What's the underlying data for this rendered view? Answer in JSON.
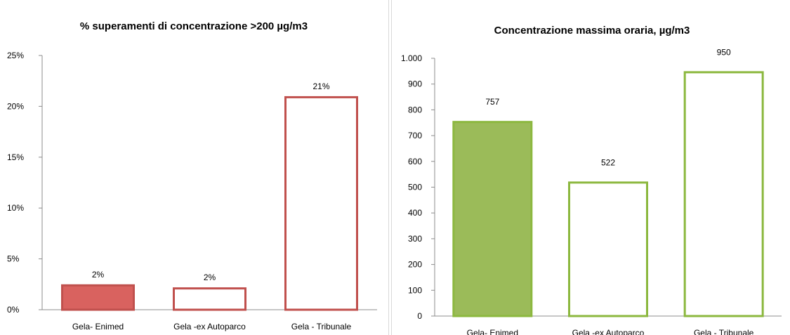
{
  "chart_data": [
    {
      "type": "bar",
      "title": "% superamenti di concentrazione >200 µg/m3",
      "xlabel": "",
      "ylabel": "",
      "categories": [
        "Gela- Enimed",
        "Gela -ex Autoparco",
        "Gela - Tribunale"
      ],
      "values": [
        2.5,
        2.2,
        21
      ],
      "data_labels": [
        "2%",
        "2%",
        "21%"
      ],
      "ylim": [
        0,
        25
      ],
      "yticks": [
        0,
        5,
        10,
        15,
        20,
        25
      ],
      "ytick_labels": [
        "0%",
        "5%",
        "10%",
        "15%",
        "20%",
        "25%"
      ],
      "grid": false,
      "legend": "none",
      "colors": {
        "accent": "#c0504d",
        "fill_first": "#d9625f",
        "fill_other": "#ffffff"
      }
    },
    {
      "type": "bar",
      "title": "Concentrazione massima oraria, µg/m3",
      "xlabel": "",
      "ylabel": "",
      "categories": [
        "Gela- Enimed",
        "Gela -ex Autoparco",
        "Gela - Tribunale"
      ],
      "values": [
        757,
        522,
        950
      ],
      "data_labels": [
        "757",
        "522",
        "950"
      ],
      "ylim": [
        0,
        1000
      ],
      "yticks": [
        0,
        100,
        200,
        300,
        400,
        500,
        600,
        700,
        800,
        900,
        1000
      ],
      "ytick_labels": [
        "0",
        "100",
        "200",
        "300",
        "400",
        "500",
        "600",
        "700",
        "800",
        "900",
        "1.000"
      ],
      "grid": false,
      "legend": "none",
      "colors": {
        "accent": "#8cb83f",
        "fill_first": "#9bbb59",
        "fill_other": "#ffffff"
      }
    }
  ]
}
